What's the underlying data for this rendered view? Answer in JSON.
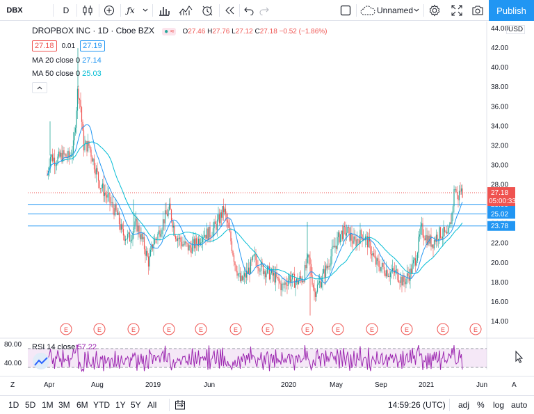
{
  "toolbar": {
    "symbol": "DBX",
    "interval": "D",
    "layout_name": "Unnamed",
    "publish_label": "Publish",
    "icons": [
      "candles-icon",
      "plus-circle-icon",
      "fx-icon",
      "bar-chart-icon",
      "indicator-icon",
      "alert-clock-icon",
      "replay-icon",
      "undo-icon",
      "redo-icon",
      "square-icon",
      "cloud-icon",
      "gear-icon",
      "fullscreen-icon",
      "camera-icon"
    ]
  },
  "legend": {
    "title": "DROPBOX INC · 1D · Cboe BZX",
    "status_badge": "≈",
    "ohlc": {
      "o_label": "O",
      "o": "27.46",
      "h_label": "H",
      "h": "27.76",
      "l_label": "L",
      "l": "27.12",
      "c_label": "C",
      "c": "27.18",
      "change": "−0.52 (−1.86%)"
    },
    "bid": "27.18",
    "spread": "0.01",
    "ask": "27.19",
    "ma20": {
      "label": "MA 20 close 0",
      "value": "27.14"
    },
    "ma50": {
      "label": "MA 50 close 0",
      "value": "25.03"
    },
    "rsi": {
      "label": "RSI 14 close",
      "value": "57.22"
    }
  },
  "price_axis": {
    "currency": "USD",
    "ticks": [
      "44.00",
      "42.00",
      "40.00",
      "38.00",
      "36.00",
      "34.00",
      "32.00",
      "30.00",
      "28.00",
      "26.00",
      "24.00",
      "22.00",
      "20.00",
      "18.00",
      "16.00",
      "14.00"
    ],
    "last_price": "27.18",
    "countdown": "05:00:33",
    "levels": [
      "25.99",
      "25.02",
      "23.78"
    ]
  },
  "rsi_axis": {
    "ticks": [
      "80.00",
      "40.00"
    ]
  },
  "time_axis": {
    "labels": [
      "Apr",
      "Aug",
      "2019",
      "Jun",
      "2020",
      "May",
      "Sep",
      "2021",
      "Jun"
    ],
    "earnings_marker": "E"
  },
  "chart_data": {
    "type": "candlestick",
    "y_range": [
      13,
      44.5
    ],
    "levels": [
      25.99,
      25.02,
      23.78
    ],
    "last_close": 27.18,
    "earnings_count": 13,
    "rsi_range": [
      20,
      90
    ],
    "rsi_bands": [
      70,
      30
    ]
  },
  "bottom": {
    "ranges": [
      "1D",
      "5D",
      "1M",
      "3M",
      "6M",
      "YTD",
      "1Y",
      "5Y",
      "All"
    ],
    "time": "14:59:26 (UTC)",
    "adj": "adj",
    "percent": "%",
    "log": "log",
    "auto": "auto"
  },
  "colors": {
    "up": "#26a69a",
    "down": "#ef5350",
    "ma20": "#2196f3",
    "ma50": "#00bcd4",
    "level": "#2196f3",
    "rsi": "#9c27b0",
    "publish": "#2196f3"
  }
}
